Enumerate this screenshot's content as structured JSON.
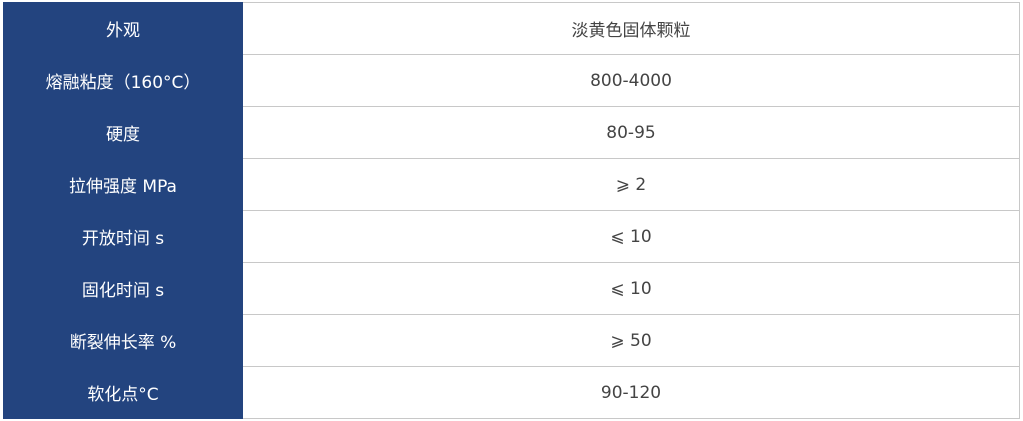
{
  "rows": [
    {
      "label": "外观",
      "value": "淡黄色固体颗粒"
    },
    {
      "label": "熔融粘度（160°C）",
      "value": "800-4000"
    },
    {
      "label": "硬度",
      "value": "80-95"
    },
    {
      "label": "拉伸强度 MPa",
      "value": "⩾ 2"
    },
    {
      "label": "开放时间 s",
      "value": "⩽ 10"
    },
    {
      "label": "固化时间 s",
      "value": "⩽ 10"
    },
    {
      "label": "断裂伸长率 %",
      "value": "⩾ 50"
    },
    {
      "label": "软化点°C",
      "value": "90-120"
    }
  ]
}
